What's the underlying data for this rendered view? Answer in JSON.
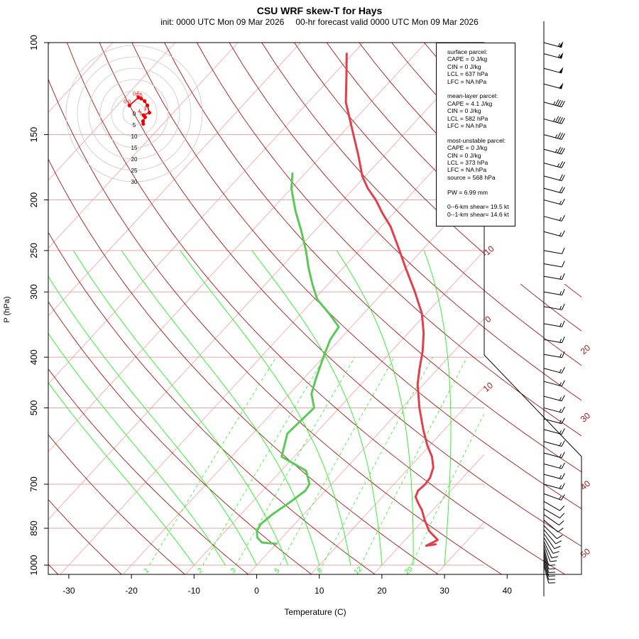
{
  "title": "CSU WRF skew-T for Hays",
  "subtitle_init": "init: 0000 UTC Mon 09 Mar 2026",
  "subtitle_valid": "00-hr forecast valid 0000 UTC Mon 09 Mar 2026",
  "colors": {
    "temperature": "#e0404c",
    "dewpoint": "#5cc85a",
    "dry_adiabat": "#a01818",
    "moist_adiabat": "#22ee22",
    "mixing_ratio": "#22ee22",
    "isotherm": "#f0a0a0",
    "isobar": "#e0a6a6",
    "hodograph": "#ee0000",
    "hodo_ring": "#c8c8c8",
    "isotherm_label": "#a01818"
  },
  "stats": {
    "surface": [
      "surface parcel:",
      "CAPE = 0 J/kg",
      "CIN = 0 J/kg",
      "LCL = 637 hPa",
      "LFC = NA hPa"
    ],
    "mean_layer": [
      "mean-layer parcel:",
      "CAPE = 4.1 J/kg",
      "CIN = 0 J/kg",
      "LCL = 582 hPa",
      "LFC = NA hPa"
    ],
    "most_unstable": [
      "most-unstable parcel:",
      "CAPE = 0 J/kg",
      "CIN = 0 J/kg",
      "LCL = 373 hPa",
      "LFC = NA hPa",
      "source = 568 hPa"
    ],
    "pw": "PW =  6.99 mm",
    "shear": [
      "0--6-km shear= 19.5 kt",
      "0--1-km shear= 14.6 kt"
    ]
  },
  "chart_data": {
    "type": "line",
    "title": "CSU WRF skew-T for Hays",
    "xlabel": "Temperature (C)",
    "ylabel": "P (hPa)",
    "x_ticks": [
      "-30",
      "-20",
      "-10",
      "0",
      "10",
      "20",
      "30",
      "40"
    ],
    "x_tick_values": [
      -30,
      -20,
      -10,
      0,
      10,
      20,
      30,
      40
    ],
    "xlim": [
      -33,
      45
    ],
    "y_ticks": [
      "100",
      "150",
      "200",
      "250",
      "300",
      "400",
      "500",
      "700",
      "850",
      "1000"
    ],
    "y_tick_values": [
      100,
      150,
      200,
      250,
      300,
      400,
      500,
      700,
      850,
      1000
    ],
    "ylim": [
      1050,
      100
    ],
    "series": [
      {
        "name": "temperature",
        "points": [
          [
            912,
            25.5
          ],
          [
            918,
            24.2
          ],
          [
            895,
            25.2
          ],
          [
            860,
            22.5
          ],
          [
            820,
            20.2
          ],
          [
            785,
            18.3
          ],
          [
            760,
            16.6
          ],
          [
            740,
            15.3
          ],
          [
            720,
            14.8
          ],
          [
            700,
            15.0
          ],
          [
            680,
            14.8
          ],
          [
            650,
            13.8
          ],
          [
            620,
            12.0
          ],
          [
            590,
            9.6
          ],
          [
            550,
            6.6
          ],
          [
            500,
            2.8
          ],
          [
            450,
            -1.0
          ],
          [
            420,
            -3.0
          ],
          [
            390,
            -5.0
          ],
          [
            360,
            -7.5
          ],
          [
            330,
            -10.7
          ],
          [
            300,
            -15.0
          ],
          [
            270,
            -20.0
          ],
          [
            245,
            -24.5
          ],
          [
            225,
            -28.5
          ],
          [
            212,
            -31.8
          ],
          [
            200,
            -34.8
          ],
          [
            190,
            -37.8
          ],
          [
            180,
            -40.5
          ],
          [
            165,
            -44.0
          ],
          [
            150,
            -48.0
          ],
          [
            130,
            -54.0
          ],
          [
            115,
            -58.0
          ],
          [
            105,
            -61.0
          ]
        ]
      },
      {
        "name": "dewpoint",
        "points": [
          [
            910,
            0.0
          ],
          [
            905,
            -2.5
          ],
          [
            885,
            -4.0
          ],
          [
            860,
            -5.0
          ],
          [
            835,
            -5.4
          ],
          [
            800,
            -5.0
          ],
          [
            760,
            -4.0
          ],
          [
            720,
            -3.2
          ],
          [
            700,
            -3.5
          ],
          [
            660,
            -6.0
          ],
          [
            620,
            -12.0
          ],
          [
            560,
            -14.5
          ],
          [
            500,
            -14.0
          ],
          [
            470,
            -16.5
          ],
          [
            440,
            -18.0
          ],
          [
            400,
            -20.0
          ],
          [
            370,
            -21.5
          ],
          [
            350,
            -22.0
          ],
          [
            330,
            -25.5
          ],
          [
            310,
            -29.5
          ],
          [
            290,
            -32.5
          ],
          [
            270,
            -35.5
          ],
          [
            250,
            -38.5
          ],
          [
            230,
            -42.0
          ],
          [
            210,
            -46.0
          ],
          [
            190,
            -50.0
          ],
          [
            178,
            -52.0
          ]
        ]
      }
    ],
    "isotherm_labels": [
      "-10",
      "0",
      "10",
      "20",
      "30",
      "40",
      "50"
    ],
    "isotherm_label_values": [
      -10,
      0,
      10,
      20,
      30,
      40,
      50
    ],
    "mixing_ratio_labels": [
      "1",
      "2",
      "3",
      "5",
      "8",
      "12",
      "20"
    ],
    "mixing_ratio_values": [
      1,
      2,
      3,
      5,
      8,
      12,
      20
    ],
    "dry_adiabat_thetas_K": [
      210,
      220,
      230,
      240,
      250,
      260,
      270,
      280,
      290,
      300,
      310,
      320,
      330,
      340,
      350,
      360,
      370,
      380,
      390,
      400,
      410,
      420,
      430,
      440
    ],
    "moist_adiabat_start_temps_C": [
      -10,
      -5,
      0,
      5,
      10,
      15,
      20,
      25,
      30
    ],
    "wind_barbs": [
      {
        "p": 100,
        "dir": 285,
        "kt": 55
      },
      {
        "p": 105,
        "dir": 285,
        "kt": 55
      },
      {
        "p": 112,
        "dir": 285,
        "kt": 50
      },
      {
        "p": 120,
        "dir": 285,
        "kt": 50
      },
      {
        "p": 130,
        "dir": 285,
        "kt": 45
      },
      {
        "p": 140,
        "dir": 285,
        "kt": 45
      },
      {
        "p": 150,
        "dir": 285,
        "kt": 35
      },
      {
        "p": 160,
        "dir": 285,
        "kt": 35
      },
      {
        "p": 170,
        "dir": 285,
        "kt": 25
      },
      {
        "p": 180,
        "dir": 285,
        "kt": 20
      },
      {
        "p": 190,
        "dir": 285,
        "kt": 20
      },
      {
        "p": 200,
        "dir": 285,
        "kt": 15
      },
      {
        "p": 215,
        "dir": 285,
        "kt": 15
      },
      {
        "p": 230,
        "dir": 285,
        "kt": 15
      },
      {
        "p": 250,
        "dir": 280,
        "kt": 10
      },
      {
        "p": 265,
        "dir": 280,
        "kt": 10
      },
      {
        "p": 280,
        "dir": 280,
        "kt": 15
      },
      {
        "p": 300,
        "dir": 280,
        "kt": 15
      },
      {
        "p": 320,
        "dir": 280,
        "kt": 15
      },
      {
        "p": 345,
        "dir": 280,
        "kt": 15
      },
      {
        "p": 370,
        "dir": 280,
        "kt": 15
      },
      {
        "p": 395,
        "dir": 280,
        "kt": 15
      },
      {
        "p": 420,
        "dir": 285,
        "kt": 15
      },
      {
        "p": 445,
        "dir": 285,
        "kt": 15
      },
      {
        "p": 475,
        "dir": 285,
        "kt": 15
      },
      {
        "p": 500,
        "dir": 285,
        "kt": 15
      },
      {
        "p": 525,
        "dir": 285,
        "kt": 15
      },
      {
        "p": 550,
        "dir": 285,
        "kt": 15
      },
      {
        "p": 580,
        "dir": 285,
        "kt": 15
      },
      {
        "p": 610,
        "dir": 285,
        "kt": 15
      },
      {
        "p": 640,
        "dir": 285,
        "kt": 15
      },
      {
        "p": 670,
        "dir": 285,
        "kt": 15
      },
      {
        "p": 700,
        "dir": 285,
        "kt": 15
      },
      {
        "p": 730,
        "dir": 290,
        "kt": 15
      },
      {
        "p": 755,
        "dir": 300,
        "kt": 10
      },
      {
        "p": 780,
        "dir": 300,
        "kt": 10
      },
      {
        "p": 800,
        "dir": 305,
        "kt": 10
      },
      {
        "p": 820,
        "dir": 310,
        "kt": 10
      },
      {
        "p": 840,
        "dir": 315,
        "kt": 10
      },
      {
        "p": 855,
        "dir": 320,
        "kt": 10
      },
      {
        "p": 870,
        "dir": 325,
        "kt": 10
      },
      {
        "p": 885,
        "dir": 330,
        "kt": 10
      },
      {
        "p": 900,
        "dir": 335,
        "kt": 10
      },
      {
        "p": 912,
        "dir": 340,
        "kt": 10
      },
      {
        "p": 925,
        "dir": 345,
        "kt": 10
      },
      {
        "p": 940,
        "dir": 345,
        "kt": 10
      },
      {
        "p": 955,
        "dir": 345,
        "kt": 10
      },
      {
        "p": 970,
        "dir": 345,
        "kt": 10
      },
      {
        "p": 985,
        "dir": 345,
        "kt": 10
      },
      {
        "p": 1000,
        "dir": 345,
        "kt": 10
      }
    ],
    "hodograph": {
      "ring_labels": [
        "0",
        "5",
        "10",
        "15",
        "20",
        "25",
        "30"
      ],
      "ring_values": [
        0,
        5,
        10,
        15,
        20,
        25,
        30
      ],
      "height_labels": [
        "0.0",
        "0.5",
        "1.5",
        "3",
        "4",
        "5"
      ],
      "points": [
        {
          "u": 4.0,
          "v": -4.5,
          "label": ""
        },
        {
          "u": 3.9,
          "v": -3.3,
          "label": ""
        },
        {
          "u": 4.8,
          "v": -1.6,
          "label": "5"
        },
        {
          "u": 4.1,
          "v": -0.7,
          "label": "4"
        },
        {
          "u": 6.7,
          "v": 0.4,
          "label": "3"
        },
        {
          "u": 5.8,
          "v": 3.6,
          "label": ""
        },
        {
          "u": 4.6,
          "v": 5.5,
          "label": ""
        },
        {
          "u": 3.1,
          "v": 6.6,
          "label": "1.5"
        },
        {
          "u": 1.9,
          "v": 7.1,
          "label": "0.5"
        },
        {
          "u": -2.1,
          "v": 3.6,
          "label": "0.0"
        }
      ]
    }
  }
}
